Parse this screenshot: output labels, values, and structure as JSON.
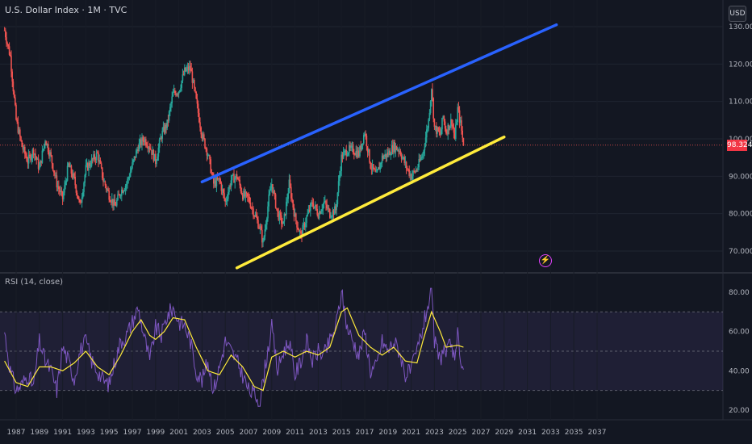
{
  "header": {
    "title": "U.S. Dollar Index · 1M · TVC"
  },
  "currency_button": "USD",
  "last_price_tag": "98.324",
  "alert_icon": "lightning-icon",
  "colors": {
    "background": "#131722",
    "up": "#26a69a",
    "down": "#ef5350",
    "channel_upper": "#2962ff",
    "channel_lower": "#ffeb3b",
    "rsi_line": "#7e57c2",
    "rsi_ma": "#ffeb3b",
    "rsi_band": "#7e57c2"
  },
  "chart_data": [
    {
      "type": "candlestick",
      "title": "U.S. Dollar Index · 1M · TVC",
      "x_ticks": [
        "1987",
        "1989",
        "1991",
        "1993",
        "1995",
        "1997",
        "1999",
        "2001",
        "2003",
        "2005",
        "2007",
        "2009",
        "2011",
        "2013",
        "2015",
        "2017",
        "2019",
        "2021",
        "2023",
        "2025",
        "2027",
        "2029",
        "2031",
        "2033",
        "2035",
        "2037"
      ],
      "y_ticks": [
        "70.000",
        "80.000",
        "90.000",
        "100.000",
        "110.000",
        "120.000",
        "130.000"
      ],
      "ylim": [
        66,
        133
      ],
      "last_price": 98.324,
      "price_path": [
        [
          1986.0,
          129
        ],
        [
          1986.5,
          122
        ],
        [
          1987.0,
          105
        ],
        [
          1987.5,
          98
        ],
        [
          1988.0,
          94
        ],
        [
          1988.5,
          97
        ],
        [
          1989.0,
          92
        ],
        [
          1989.5,
          100
        ],
        [
          1990.0,
          95
        ],
        [
          1990.5,
          88
        ],
        [
          1991.0,
          84
        ],
        [
          1991.5,
          93
        ],
        [
          1992.0,
          89
        ],
        [
          1992.5,
          82
        ],
        [
          1993.0,
          92
        ],
        [
          1993.5,
          94
        ],
        [
          1994.0,
          96
        ],
        [
          1994.5,
          89
        ],
        [
          1995.0,
          85
        ],
        [
          1995.5,
          82
        ],
        [
          1996.0,
          86
        ],
        [
          1996.5,
          88
        ],
        [
          1997.0,
          93
        ],
        [
          1997.5,
          98
        ],
        [
          1998.0,
          100
        ],
        [
          1998.5,
          98
        ],
        [
          1999.0,
          94
        ],
        [
          1999.5,
          101
        ],
        [
          2000.0,
          104
        ],
        [
          2000.5,
          112
        ],
        [
          2001.0,
          113
        ],
        [
          2001.5,
          118
        ],
        [
          2002.0,
          119
        ],
        [
          2002.5,
          110
        ],
        [
          2003.0,
          101
        ],
        [
          2003.5,
          96
        ],
        [
          2004.0,
          88
        ],
        [
          2004.5,
          89
        ],
        [
          2005.0,
          83
        ],
        [
          2005.5,
          89
        ],
        [
          2006.0,
          90
        ],
        [
          2006.5,
          85
        ],
        [
          2007.0,
          84
        ],
        [
          2007.5,
          80
        ],
        [
          2008.0,
          76
        ],
        [
          2008.25,
          72
        ],
        [
          2008.75,
          84
        ],
        [
          2009.0,
          88
        ],
        [
          2009.5,
          80
        ],
        [
          2010.0,
          77
        ],
        [
          2010.5,
          88
        ],
        [
          2011.0,
          79
        ],
        [
          2011.5,
          74
        ],
        [
          2012.0,
          79
        ],
        [
          2012.5,
          83
        ],
        [
          2013.0,
          80
        ],
        [
          2013.5,
          83
        ],
        [
          2014.0,
          80
        ],
        [
          2014.5,
          81
        ],
        [
          2015.0,
          95
        ],
        [
          2015.5,
          97
        ],
        [
          2016.0,
          97
        ],
        [
          2016.5,
          96
        ],
        [
          2017.0,
          102
        ],
        [
          2017.5,
          93
        ],
        [
          2018.0,
          90
        ],
        [
          2018.5,
          95
        ],
        [
          2019.0,
          96
        ],
        [
          2019.5,
          98
        ],
        [
          2020.0,
          97
        ],
        [
          2020.5,
          93
        ],
        [
          2021.0,
          90
        ],
        [
          2021.5,
          92
        ],
        [
          2022.0,
          96
        ],
        [
          2022.5,
          105
        ],
        [
          2022.75,
          114
        ],
        [
          2023.0,
          103
        ],
        [
          2023.5,
          101
        ],
        [
          2023.75,
          106
        ],
        [
          2024.0,
          102
        ],
        [
          2024.5,
          105
        ],
        [
          2024.75,
          100
        ],
        [
          2025.0,
          108
        ],
        [
          2025.25,
          104
        ],
        [
          2025.5,
          98.3
        ]
      ],
      "drawings": [
        {
          "name": "upper-trendline",
          "color": "#2962ff",
          "from": [
            2003.0,
            88.5
          ],
          "to": [
            2033.5,
            130.5
          ]
        },
        {
          "name": "lower-trendline",
          "color": "#ffeb3b",
          "from": [
            2006.0,
            65.5
          ],
          "to": [
            2029.0,
            100.5
          ]
        }
      ]
    },
    {
      "type": "line",
      "title": "RSI (14, close)",
      "y_ticks": [
        "20.00",
        "40.00",
        "60.00",
        "80.00"
      ],
      "ylim": [
        16,
        84
      ],
      "bands": [
        30,
        50,
        70
      ],
      "rsi_path": [
        [
          1986.0,
          60
        ],
        [
          1986.5,
          40
        ],
        [
          1987.0,
          30
        ],
        [
          1987.5,
          33
        ],
        [
          1988.0,
          38
        ],
        [
          1988.5,
          32
        ],
        [
          1989.0,
          55
        ],
        [
          1989.5,
          45
        ],
        [
          1990.0,
          40
        ],
        [
          1990.5,
          30
        ],
        [
          1991.0,
          52
        ],
        [
          1991.5,
          45
        ],
        [
          1992.0,
          36
        ],
        [
          1992.5,
          50
        ],
        [
          1993.0,
          55
        ],
        [
          1993.5,
          45
        ],
        [
          1994.0,
          40
        ],
        [
          1994.5,
          35
        ],
        [
          1995.0,
          33
        ],
        [
          1995.5,
          45
        ],
        [
          1996.0,
          55
        ],
        [
          1996.5,
          58
        ],
        [
          1997.0,
          65
        ],
        [
          1997.5,
          72
        ],
        [
          1998.0,
          58
        ],
        [
          1998.5,
          45
        ],
        [
          1999.0,
          62
        ],
        [
          1999.5,
          58
        ],
        [
          2000.0,
          68
        ],
        [
          2000.5,
          72
        ],
        [
          2001.0,
          65
        ],
        [
          2001.5,
          63
        ],
        [
          2002.0,
          55
        ],
        [
          2002.5,
          40
        ],
        [
          2003.0,
          35
        ],
        [
          2003.5,
          45
        ],
        [
          2004.0,
          30
        ],
        [
          2004.5,
          42
        ],
        [
          2005.0,
          55
        ],
        [
          2005.5,
          50
        ],
        [
          2006.0,
          45
        ],
        [
          2006.5,
          38
        ],
        [
          2007.0,
          30
        ],
        [
          2007.5,
          28
        ],
        [
          2008.0,
          25
        ],
        [
          2008.5,
          45
        ],
        [
          2009.0,
          62
        ],
        [
          2009.5,
          40
        ],
        [
          2010.0,
          50
        ],
        [
          2010.5,
          55
        ],
        [
          2011.0,
          38
        ],
        [
          2011.5,
          45
        ],
        [
          2012.0,
          55
        ],
        [
          2012.5,
          45
        ],
        [
          2013.0,
          50
        ],
        [
          2013.5,
          48
        ],
        [
          2014.0,
          55
        ],
        [
          2014.5,
          62
        ],
        [
          2015.0,
          80
        ],
        [
          2015.5,
          62
        ],
        [
          2016.0,
          55
        ],
        [
          2016.5,
          48
        ],
        [
          2017.0,
          60
        ],
        [
          2017.5,
          40
        ],
        [
          2018.0,
          42
        ],
        [
          2018.5,
          55
        ],
        [
          2019.0,
          50
        ],
        [
          2019.5,
          55
        ],
        [
          2020.0,
          50
        ],
        [
          2020.5,
          38
        ],
        [
          2021.0,
          40
        ],
        [
          2021.5,
          50
        ],
        [
          2022.0,
          62
        ],
        [
          2022.5,
          75
        ],
        [
          2022.75,
          80
        ],
        [
          2023.0,
          55
        ],
        [
          2023.5,
          45
        ],
        [
          2023.75,
          52
        ],
        [
          2024.0,
          48
        ],
        [
          2024.5,
          55
        ],
        [
          2024.75,
          42
        ],
        [
          2025.0,
          58
        ],
        [
          2025.25,
          48
        ],
        [
          2025.5,
          40
        ]
      ],
      "ma_path": [
        [
          1986.0,
          45
        ],
        [
          1987.0,
          34
        ],
        [
          1988.0,
          32
        ],
        [
          1989.0,
          42
        ],
        [
          1990.0,
          42
        ],
        [
          1991.0,
          40
        ],
        [
          1992.0,
          44
        ],
        [
          1993.0,
          50
        ],
        [
          1994.0,
          42
        ],
        [
          1995.0,
          38
        ],
        [
          1996.0,
          48
        ],
        [
          1997.0,
          60
        ],
        [
          1997.75,
          66
        ],
        [
          1998.5,
          58
        ],
        [
          1999.0,
          56
        ],
        [
          1999.75,
          60
        ],
        [
          2000.5,
          67
        ],
        [
          2001.5,
          66
        ],
        [
          2002.5,
          52
        ],
        [
          2003.5,
          40
        ],
        [
          2004.5,
          38
        ],
        [
          2005.5,
          48
        ],
        [
          2006.5,
          42
        ],
        [
          2007.5,
          32
        ],
        [
          2008.25,
          30
        ],
        [
          2009.0,
          47
        ],
        [
          2010.0,
          50
        ],
        [
          2011.0,
          47
        ],
        [
          2012.0,
          50
        ],
        [
          2013.0,
          48
        ],
        [
          2014.0,
          52
        ],
        [
          2015.0,
          70
        ],
        [
          2015.5,
          72
        ],
        [
          2016.5,
          58
        ],
        [
          2017.5,
          52
        ],
        [
          2018.5,
          48
        ],
        [
          2019.5,
          52
        ],
        [
          2020.5,
          45
        ],
        [
          2021.5,
          44
        ],
        [
          2022.0,
          55
        ],
        [
          2022.75,
          70
        ],
        [
          2023.5,
          60
        ],
        [
          2024.0,
          52
        ],
        [
          2025.0,
          53
        ],
        [
          2025.5,
          52
        ]
      ]
    }
  ]
}
